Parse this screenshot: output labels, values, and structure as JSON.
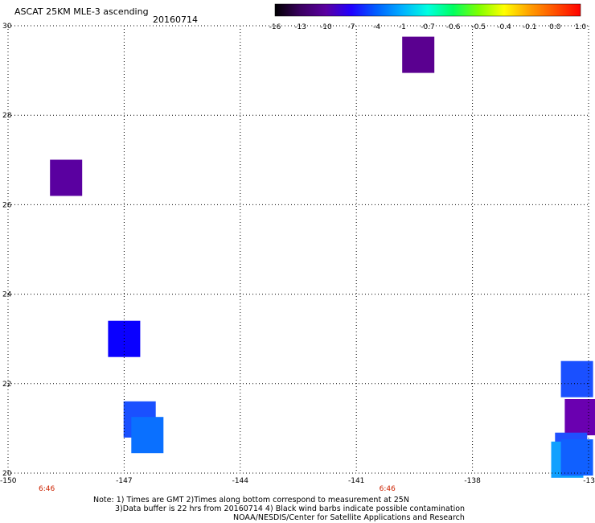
{
  "header": {
    "title": "ASCAT 25KM MLE-3 ascending",
    "date": "20160714"
  },
  "colorbar": {
    "labels": [
      "-16",
      "-13",
      "-10",
      "-7",
      "-4",
      "-1",
      "-0.7",
      "-0.6",
      "-0.5",
      "-0.4",
      "-0.1",
      "0.0",
      "1.0"
    ],
    "colors": [
      "#000000",
      "#3a0060",
      "#5a00a0",
      "#2000ff",
      "#0060ff",
      "#00b0ff",
      "#00ffe0",
      "#00ff60",
      "#80ff00",
      "#ffff00",
      "#ffa000",
      "#ff5000",
      "#ff0000"
    ]
  },
  "axes": {
    "y_ticks": [
      "30",
      "28",
      "26",
      "24",
      "22",
      "20"
    ],
    "x_ticks": [
      "-150",
      "-147",
      "-144",
      "-141",
      "-138",
      "-13"
    ],
    "time_labels": [
      "6:46",
      "6:46"
    ]
  },
  "map": {
    "lon_range": [
      -150,
      -135
    ],
    "lat_range": [
      20,
      30
    ],
    "cells": [
      {
        "lon": -139.4,
        "lat": 29.35,
        "color": "#5a0090"
      },
      {
        "lon": -148.5,
        "lat": 26.6,
        "color": "#5a00a0"
      },
      {
        "lon": -147.0,
        "lat": 23.0,
        "color": "#0a00ff"
      },
      {
        "lon": -146.6,
        "lat": 21.2,
        "color": "#1a50ff"
      },
      {
        "lon": -146.4,
        "lat": 20.85,
        "color": "#0a70ff"
      },
      {
        "lon": -135.3,
        "lat": 22.1,
        "color": "#1a50ff"
      },
      {
        "lon": -135.2,
        "lat": 21.25,
        "color": "#6a00b0"
      },
      {
        "lon": -135.45,
        "lat": 20.5,
        "color": "#2050ff"
      },
      {
        "lon": -135.55,
        "lat": 20.3,
        "color": "#10a0ff"
      },
      {
        "lon": -135.3,
        "lat": 20.35,
        "color": "#1060ff"
      }
    ]
  },
  "footer": {
    "line1": "Note: 1) Times are GMT 2)Times along bottom correspond to measurement at 25N",
    "line2": "3)Data buffer is 22 hrs from 20160714 4) Black wind barbs indicate possible contamination",
    "line3": "NOAA/NESDIS/Center for Satellite Applications and Research"
  }
}
